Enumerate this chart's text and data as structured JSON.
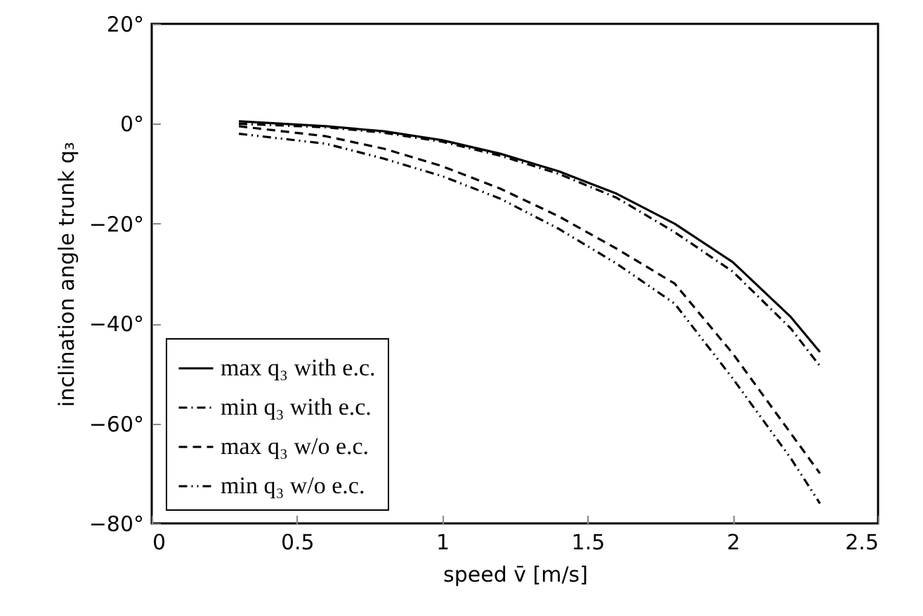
{
  "chart_data": {
    "type": "line",
    "xlabel": "speed v̄ [m/s]",
    "ylabel": "inclination angle trunk q₃",
    "x": [
      0.3,
      0.6,
      0.8,
      1.0,
      1.2,
      1.4,
      1.6,
      1.8,
      2.0,
      2.2,
      2.3
    ],
    "series": [
      {
        "name": "max q₃ with e.c.",
        "color": "#000000",
        "line_style": "solid",
        "values": [
          0.5,
          -0.5,
          -1.5,
          -3.3,
          -6,
          -9.5,
          -14,
          -20,
          -27.7,
          -38.7,
          -45.7
        ]
      },
      {
        "name": "min q₃ with e.c.",
        "color": "#000000",
        "line_style": "dashdot",
        "values": [
          0,
          -0.7,
          -1.8,
          -3.6,
          -6.4,
          -10,
          -14.8,
          -21.7,
          -29.6,
          -41,
          -48.5
        ]
      },
      {
        "name": "max q₃ w/o e.c.",
        "color": "#000000",
        "line_style": "dashed",
        "values": [
          -0.5,
          -2.5,
          -5,
          -8.5,
          -13,
          -18.5,
          -25,
          -32,
          -46,
          -62,
          -70
        ]
      },
      {
        "name": "min q₃ w/o e.c.",
        "color": "#000000",
        "line_style": "dashdotdot",
        "values": [
          -2,
          -4,
          -7,
          -10.5,
          -15,
          -21,
          -28,
          -36,
          -51,
          -67,
          -76
        ]
      }
    ],
    "xlim": [
      0,
      2.5
    ],
    "xticks": [
      0,
      0.5,
      1,
      1.5,
      2,
      2.5
    ],
    "ylim": [
      -80,
      20
    ],
    "yticks": [
      {
        "value": -80,
        "label": "−80°"
      },
      {
        "value": -60,
        "label": "−60°"
      },
      {
        "value": -40,
        "label": "−40°"
      },
      {
        "value": -20,
        "label": "−20°"
      },
      {
        "value": 0,
        "label": "0°"
      },
      {
        "value": 20,
        "label": "20°"
      }
    ],
    "grid": false,
    "legend": "bottom left"
  }
}
